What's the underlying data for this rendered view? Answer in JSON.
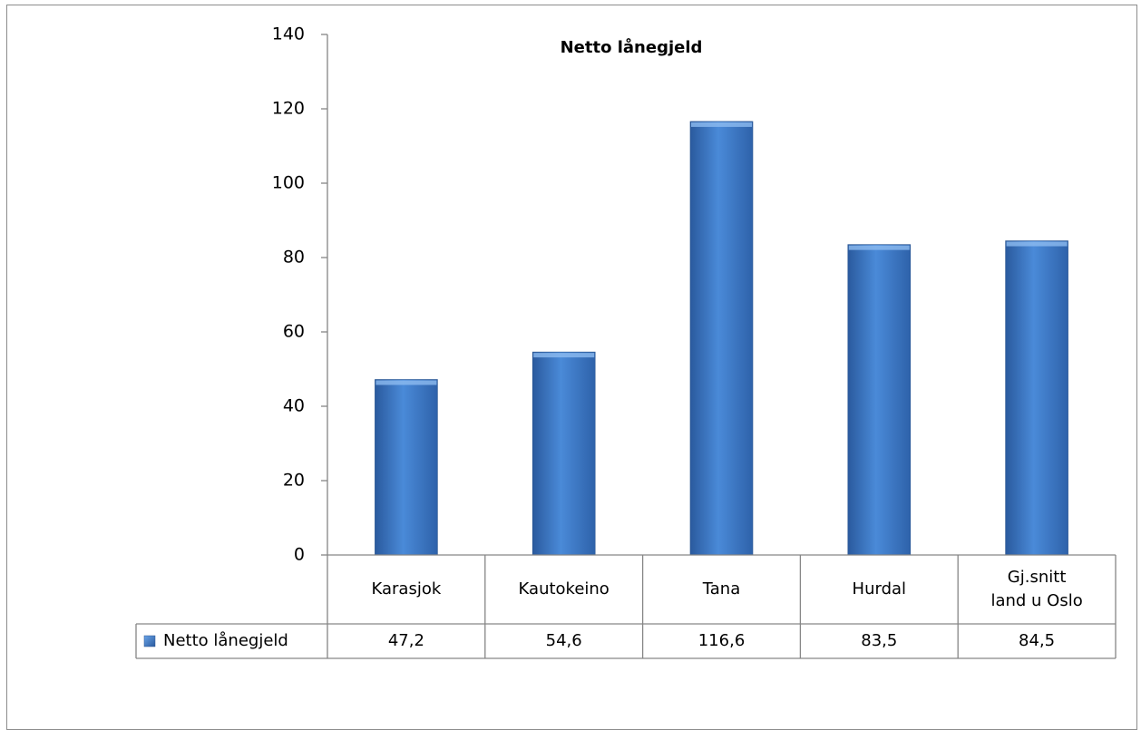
{
  "chart_data": {
    "type": "bar",
    "title": "Netto lånegjeld",
    "categories": [
      [
        "Karasjok"
      ],
      [
        "Kautokeino"
      ],
      [
        "Tana"
      ],
      [
        "Hurdal"
      ],
      [
        "Gj.snitt",
        "land u Oslo"
      ]
    ],
    "series": [
      {
        "name": "Netto lånegjeld",
        "values": [
          47.2,
          54.6,
          116.6,
          83.5,
          84.5
        ],
        "color": "#3a78c8"
      }
    ],
    "value_labels": [
      "47,2",
      "54,6",
      "116,6",
      "83,5",
      "84,5"
    ],
    "y_ticks": [
      0,
      20,
      40,
      60,
      80,
      100,
      120,
      140
    ],
    "ylim": [
      0,
      140
    ],
    "xlabel": "",
    "ylabel": "",
    "grid": false,
    "legend": "data-table"
  }
}
